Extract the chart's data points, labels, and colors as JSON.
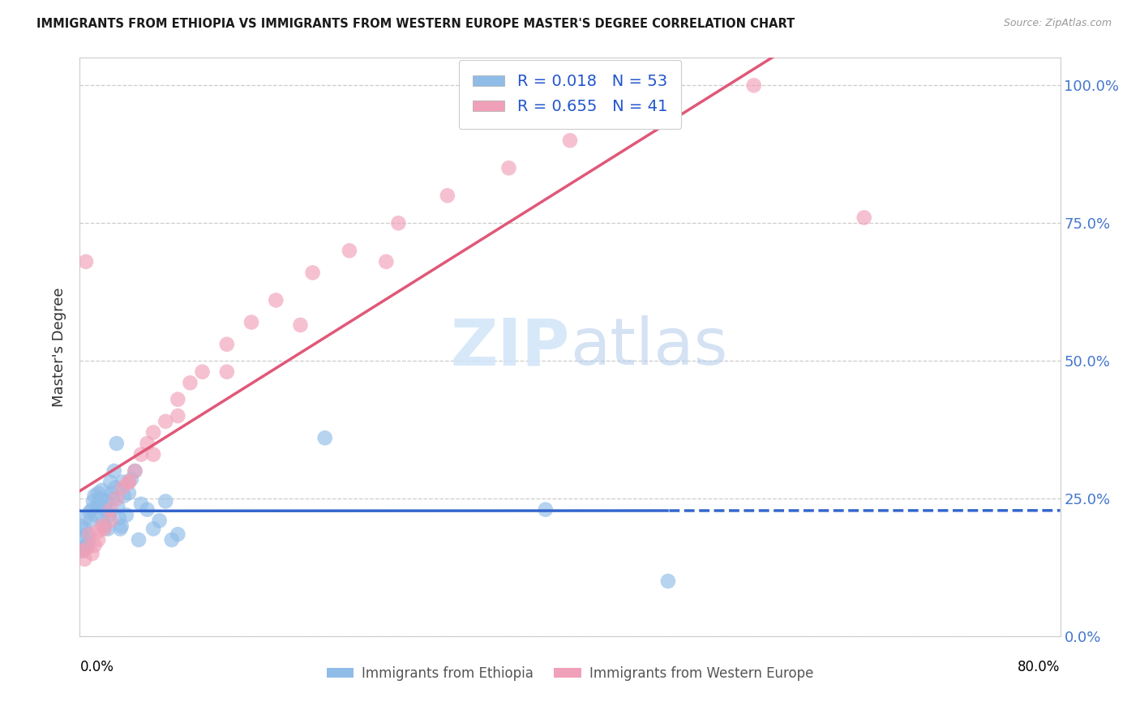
{
  "title": "IMMIGRANTS FROM ETHIOPIA VS IMMIGRANTS FROM WESTERN EUROPE MASTER'S DEGREE CORRELATION CHART",
  "source": "Source: ZipAtlas.com",
  "ylabel": "Master's Degree",
  "xlim": [
    0.0,
    0.8
  ],
  "ylim": [
    0.0,
    1.05
  ],
  "yticks": [
    0.0,
    0.25,
    0.5,
    0.75,
    1.0
  ],
  "ytick_labels_right": [
    "0.0%",
    "25.0%",
    "50.0%",
    "75.0%",
    "100.0%"
  ],
  "series1_color": "#90bce8",
  "series2_color": "#f0a0b8",
  "line1_color": "#3366cc",
  "line2_color": "#e05878",
  "legend_label1": "Immigrants from Ethiopia",
  "legend_label2": "Immigrants from Western Europe",
  "R1": 0.018,
  "N1": 53,
  "R2": 0.655,
  "N2": 41,
  "eth_x": [
    0.001,
    0.002,
    0.003,
    0.004,
    0.005,
    0.006,
    0.007,
    0.008,
    0.009,
    0.01,
    0.011,
    0.012,
    0.013,
    0.014,
    0.015,
    0.016,
    0.017,
    0.018,
    0.019,
    0.02,
    0.021,
    0.022,
    0.023,
    0.024,
    0.025,
    0.026,
    0.027,
    0.028,
    0.029,
    0.03,
    0.031,
    0.032,
    0.033,
    0.034,
    0.035,
    0.036,
    0.038,
    0.04,
    0.042,
    0.045,
    0.048,
    0.05,
    0.055,
    0.06,
    0.065,
    0.07,
    0.075,
    0.08,
    0.003,
    0.005,
    0.38,
    0.48,
    0.2
  ],
  "eth_y": [
    0.2,
    0.18,
    0.16,
    0.195,
    0.215,
    0.185,
    0.17,
    0.225,
    0.21,
    0.23,
    0.245,
    0.255,
    0.22,
    0.235,
    0.26,
    0.24,
    0.25,
    0.265,
    0.21,
    0.2,
    0.23,
    0.245,
    0.195,
    0.22,
    0.28,
    0.26,
    0.25,
    0.3,
    0.27,
    0.35,
    0.235,
    0.215,
    0.195,
    0.2,
    0.28,
    0.255,
    0.22,
    0.26,
    0.285,
    0.3,
    0.175,
    0.24,
    0.23,
    0.195,
    0.21,
    0.245,
    0.175,
    0.185,
    0.155,
    0.165,
    0.23,
    0.1,
    0.36
  ],
  "we_x": [
    0.002,
    0.004,
    0.006,
    0.008,
    0.01,
    0.012,
    0.015,
    0.018,
    0.02,
    0.025,
    0.03,
    0.035,
    0.04,
    0.045,
    0.05,
    0.055,
    0.06,
    0.07,
    0.08,
    0.09,
    0.1,
    0.12,
    0.14,
    0.16,
    0.19,
    0.22,
    0.26,
    0.3,
    0.35,
    0.4,
    0.015,
    0.025,
    0.04,
    0.06,
    0.08,
    0.12,
    0.18,
    0.25,
    0.64,
    0.55,
    0.005
  ],
  "we_y": [
    0.155,
    0.14,
    0.16,
    0.185,
    0.15,
    0.165,
    0.19,
    0.2,
    0.195,
    0.23,
    0.25,
    0.27,
    0.28,
    0.3,
    0.33,
    0.35,
    0.37,
    0.39,
    0.43,
    0.46,
    0.48,
    0.53,
    0.57,
    0.61,
    0.66,
    0.7,
    0.75,
    0.8,
    0.85,
    0.9,
    0.175,
    0.21,
    0.28,
    0.33,
    0.4,
    0.48,
    0.565,
    0.68,
    0.76,
    1.0,
    0.68
  ],
  "grid_color": "#cccccc",
  "spine_color": "#cccccc",
  "right_axis_color": "#4477cc",
  "watermark_color": "#d0e4f8"
}
